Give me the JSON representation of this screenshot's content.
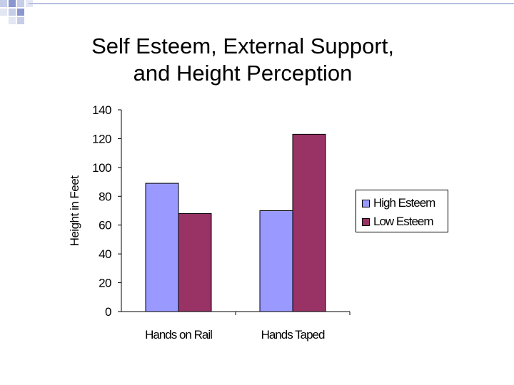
{
  "slide": {
    "title_line1": "Self Esteem, External Support,",
    "title_line2": "and Height Perception"
  },
  "chart_data": {
    "type": "bar",
    "categories": [
      "Hands on Rail",
      "Hands Taped"
    ],
    "series": [
      {
        "name": "High Esteem",
        "values": [
          89,
          70
        ],
        "color": "#9999ff"
      },
      {
        "name": "Low Esteem",
        "values": [
          68,
          123
        ],
        "color": "#993366"
      }
    ],
    "ylabel": "Height in Feet",
    "ylim": [
      0,
      140
    ],
    "yticks": [
      0,
      20,
      40,
      60,
      80,
      100,
      120,
      140
    ],
    "ytick_labels": [
      "0",
      "20",
      "40",
      "60",
      "80",
      "100",
      "120",
      "140"
    ],
    "legend_position": "right",
    "grid": false
  }
}
